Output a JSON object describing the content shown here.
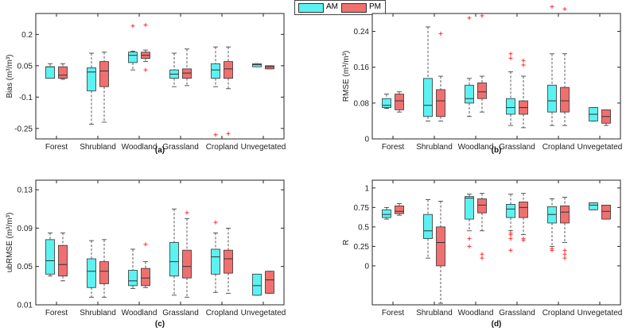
{
  "legend": {
    "am_label": "AM",
    "pm_label": "PM"
  },
  "colors": {
    "am": "#5cf2f2",
    "pm": "#f07070",
    "outlier": "#ff3030",
    "axis": "#262626",
    "whisker": "#333333"
  },
  "chart_data": [
    {
      "type": "box",
      "panel_label": "(a)",
      "ylabel": "Bias (m³/m³)",
      "ylim": [
        -0.3,
        0.3
      ],
      "yticks": [
        -0.25,
        -0.1,
        0.05,
        0.2
      ],
      "ytick_labels": [
        "-0.25",
        "-0.1",
        "0.05",
        "0.2"
      ],
      "categories": [
        "Forest",
        "Shrubland",
        "Woodland",
        "Grassland",
        "Cropland",
        "Unvegetated"
      ],
      "series": [
        {
          "name": "AM",
          "boxes": [
            {
              "min": -0.01,
              "q1": -0.01,
              "median": 0.045,
              "q3": 0.045,
              "max": 0.06,
              "outliers": []
            },
            {
              "min": -0.23,
              "q1": -0.07,
              "median": 0.02,
              "q3": 0.04,
              "max": 0.11,
              "outliers": []
            },
            {
              "min": 0.03,
              "q1": 0.065,
              "median": 0.1,
              "q3": 0.115,
              "max": 0.12,
              "outliers": [
                0.24
              ]
            },
            {
              "min": -0.05,
              "q1": -0.01,
              "median": 0.01,
              "q3": 0.03,
              "max": 0.11,
              "outliers": []
            },
            {
              "min": -0.05,
              "q1": -0.01,
              "median": 0.03,
              "q3": 0.06,
              "max": 0.14,
              "outliers": [
                -0.28
              ]
            },
            {
              "min": 0.045,
              "q1": 0.045,
              "median": 0.055,
              "q3": 0.06,
              "max": 0.06,
              "outliers": []
            }
          ]
        },
        {
          "name": "PM",
          "boxes": [
            {
              "min": -0.015,
              "q1": -0.01,
              "median": 0.005,
              "q3": 0.045,
              "max": 0.06,
              "outliers": []
            },
            {
              "min": -0.22,
              "q1": -0.05,
              "median": 0.025,
              "q3": 0.07,
              "max": 0.115,
              "outliers": []
            },
            {
              "min": 0.07,
              "q1": 0.085,
              "median": 0.1,
              "q3": 0.115,
              "max": 0.125,
              "outliers": [
                0.245,
                0.03
              ]
            },
            {
              "min": -0.045,
              "q1": -0.01,
              "median": 0.015,
              "q3": 0.035,
              "max": 0.13,
              "outliers": []
            },
            {
              "min": -0.06,
              "q1": -0.01,
              "median": 0.035,
              "q3": 0.07,
              "max": 0.14,
              "outliers": [
                -0.275
              ]
            },
            {
              "min": 0.035,
              "q1": 0.035,
              "median": 0.045,
              "q3": 0.05,
              "max": 0.05,
              "outliers": []
            }
          ]
        }
      ]
    },
    {
      "type": "box",
      "panel_label": "(b)",
      "ylabel": "RMSE (m³/m³)",
      "ylim": [
        0,
        0.28
      ],
      "yticks": [
        0,
        0.08,
        0.16,
        0.24
      ],
      "ytick_labels": [
        "0",
        "0.08",
        "0.16",
        "0.24"
      ],
      "categories": [
        "Forest",
        "Shrubland",
        "Woodland",
        "Grassland",
        "Cropland",
        "Unvegetated"
      ],
      "series": [
        {
          "name": "AM",
          "boxes": [
            {
              "min": 0.068,
              "q1": 0.07,
              "median": 0.075,
              "q3": 0.09,
              "max": 0.1,
              "outliers": []
            },
            {
              "min": 0.04,
              "q1": 0.05,
              "median": 0.075,
              "q3": 0.135,
              "max": 0.25,
              "outliers": []
            },
            {
              "min": 0.05,
              "q1": 0.08,
              "median": 0.09,
              "q3": 0.12,
              "max": 0.135,
              "outliers": [
                0.27
              ]
            },
            {
              "min": 0.03,
              "q1": 0.055,
              "median": 0.07,
              "q3": 0.09,
              "max": 0.15,
              "outliers": [
                0.19,
                0.18
              ]
            },
            {
              "min": 0.03,
              "q1": 0.06,
              "median": 0.085,
              "q3": 0.12,
              "max": 0.19,
              "outliers": [
                0.295
              ]
            },
            {
              "min": 0.04,
              "q1": 0.04,
              "median": 0.055,
              "q3": 0.07,
              "max": 0.07,
              "outliers": []
            }
          ]
        },
        {
          "name": "PM",
          "boxes": [
            {
              "min": 0.06,
              "q1": 0.065,
              "median": 0.085,
              "q3": 0.1,
              "max": 0.105,
              "outliers": []
            },
            {
              "min": 0.04,
              "q1": 0.05,
              "median": 0.085,
              "q3": 0.11,
              "max": 0.14,
              "outliers": [
                0.235
              ]
            },
            {
              "min": 0.06,
              "q1": 0.09,
              "median": 0.105,
              "q3": 0.125,
              "max": 0.14,
              "outliers": [
                0.275
              ]
            },
            {
              "min": 0.025,
              "q1": 0.055,
              "median": 0.07,
              "q3": 0.085,
              "max": 0.14,
              "outliers": [
                0.175,
                0.165
              ]
            },
            {
              "min": 0.03,
              "q1": 0.06,
              "median": 0.085,
              "q3": 0.115,
              "max": 0.19,
              "outliers": [
                0.29
              ]
            },
            {
              "min": 0.03,
              "q1": 0.035,
              "median": 0.05,
              "q3": 0.065,
              "max": 0.065,
              "outliers": []
            }
          ]
        }
      ]
    },
    {
      "type": "box",
      "panel_label": "(c)",
      "ylabel": "ubRMSE (m³/m³)",
      "ylim": [
        0.01,
        0.14
      ],
      "yticks": [
        0.01,
        0.05,
        0.09,
        0.13
      ],
      "ytick_labels": [
        "0.01",
        "0.05",
        "0.09",
        "0.13"
      ],
      "categories": [
        "Forest",
        "Shrubland",
        "Woodland",
        "Grassland",
        "Cropland",
        "Unvegetated"
      ],
      "series": [
        {
          "name": "AM",
          "boxes": [
            {
              "min": 0.04,
              "q1": 0.042,
              "median": 0.056,
              "q3": 0.078,
              "max": 0.085,
              "outliers": []
            },
            {
              "min": 0.018,
              "q1": 0.028,
              "median": 0.045,
              "q3": 0.058,
              "max": 0.077,
              "outliers": []
            },
            {
              "min": 0.027,
              "q1": 0.03,
              "median": 0.035,
              "q3": 0.046,
              "max": 0.068,
              "outliers": []
            },
            {
              "min": 0.02,
              "q1": 0.04,
              "median": 0.055,
              "q3": 0.075,
              "max": 0.11,
              "outliers": []
            },
            {
              "min": 0.023,
              "q1": 0.042,
              "median": 0.06,
              "q3": 0.068,
              "max": 0.085,
              "outliers": [
                0.096
              ]
            },
            {
              "min": 0.02,
              "q1": 0.02,
              "median": 0.03,
              "q3": 0.042,
              "max": 0.042,
              "outliers": []
            }
          ]
        },
        {
          "name": "PM",
          "boxes": [
            {
              "min": 0.035,
              "q1": 0.04,
              "median": 0.052,
              "q3": 0.072,
              "max": 0.085,
              "outliers": []
            },
            {
              "min": 0.018,
              "q1": 0.032,
              "median": 0.045,
              "q3": 0.055,
              "max": 0.078,
              "outliers": []
            },
            {
              "min": 0.028,
              "q1": 0.03,
              "median": 0.038,
              "q3": 0.048,
              "max": 0.055,
              "outliers": [
                0.073
              ]
            },
            {
              "min": 0.018,
              "q1": 0.038,
              "median": 0.05,
              "q3": 0.067,
              "max": 0.1,
              "outliers": [
                0.106
              ]
            },
            {
              "min": 0.022,
              "q1": 0.043,
              "median": 0.058,
              "q3": 0.067,
              "max": 0.09,
              "outliers": []
            },
            {
              "min": 0.022,
              "q1": 0.022,
              "median": 0.036,
              "q3": 0.045,
              "max": 0.045,
              "outliers": []
            }
          ]
        }
      ]
    },
    {
      "type": "box",
      "panel_label": "(d)",
      "ylabel": "R",
      "ylim": [
        -0.5,
        1.1
      ],
      "yticks": [
        0,
        0.25,
        0.5,
        0.75,
        1
      ],
      "ytick_labels": [
        "0",
        "0.25",
        "0.5",
        "0.75",
        "1"
      ],
      "categories": [
        "Forest",
        "Shrubland",
        "Woodland",
        "Grassland",
        "Cropland",
        "Unvegetated"
      ],
      "series": [
        {
          "name": "AM",
          "boxes": [
            {
              "min": 0.6,
              "q1": 0.62,
              "median": 0.66,
              "q3": 0.72,
              "max": 0.75,
              "outliers": []
            },
            {
              "min": 0.1,
              "q1": 0.35,
              "median": 0.45,
              "q3": 0.66,
              "max": 0.85,
              "outliers": []
            },
            {
              "min": 0.45,
              "q1": 0.6,
              "median": 0.87,
              "q3": 0.89,
              "max": 0.92,
              "outliers": [
                0.35,
                0.25
              ]
            },
            {
              "min": 0.45,
              "q1": 0.62,
              "median": 0.73,
              "q3": 0.79,
              "max": 0.92,
              "outliers": [
                0.42,
                0.4,
                0.35,
                0.2
              ]
            },
            {
              "min": 0.25,
              "q1": 0.55,
              "median": 0.66,
              "q3": 0.76,
              "max": 0.86,
              "outliers": [
                0.22,
                0.2
              ]
            },
            {
              "min": 0.72,
              "q1": 0.72,
              "median": 0.78,
              "q3": 0.81,
              "max": 0.81,
              "outliers": []
            }
          ]
        },
        {
          "name": "PM",
          "boxes": [
            {
              "min": 0.65,
              "q1": 0.67,
              "median": 0.7,
              "q3": 0.77,
              "max": 0.8,
              "outliers": []
            },
            {
              "min": -0.48,
              "q1": 0.0,
              "median": 0.3,
              "q3": 0.5,
              "max": 0.83,
              "outliers": []
            },
            {
              "min": 0.45,
              "q1": 0.68,
              "median": 0.78,
              "q3": 0.86,
              "max": 0.93,
              "outliers": [
                0.15,
                0.1
              ]
            },
            {
              "min": 0.4,
              "q1": 0.62,
              "median": 0.75,
              "q3": 0.82,
              "max": 0.93,
              "outliers": [
                0.35,
                0.33
              ]
            },
            {
              "min": 0.3,
              "q1": 0.55,
              "median": 0.69,
              "q3": 0.77,
              "max": 0.88,
              "outliers": [
                0.2,
                0.15,
                0.1
              ]
            },
            {
              "min": 0.6,
              "q1": 0.6,
              "median": 0.7,
              "q3": 0.78,
              "max": 0.78,
              "outliers": []
            }
          ]
        }
      ]
    }
  ]
}
